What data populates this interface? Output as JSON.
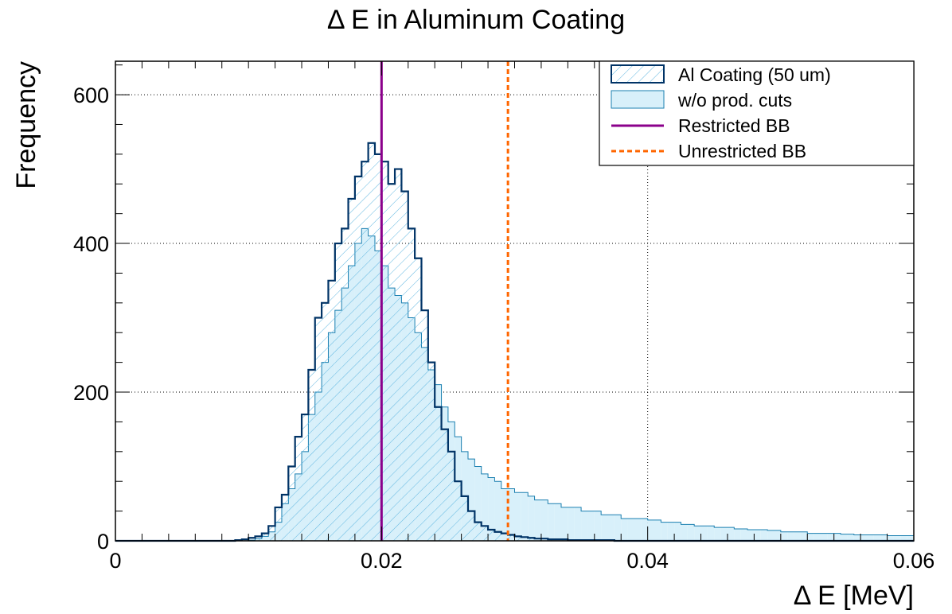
{
  "chart_data": {
    "type": "histogram",
    "title": "Δ E in Aluminum Coating",
    "xlabel": "Δ E [MeV]",
    "ylabel": "Frequency",
    "xlim": [
      0,
      0.06
    ],
    "ylim": [
      0,
      645
    ],
    "grid": true,
    "legend_position": "top-right",
    "x_ticks": [
      {
        "value": 0,
        "label": "0"
      },
      {
        "value": 0.02,
        "label": "0.02"
      },
      {
        "value": 0.04,
        "label": "0.04"
      },
      {
        "value": 0.06,
        "label": "0.06"
      }
    ],
    "y_ticks": [
      {
        "value": 0,
        "label": "0"
      },
      {
        "value": 200,
        "label": "200"
      },
      {
        "value": 400,
        "label": "400"
      },
      {
        "value": 600,
        "label": "600"
      }
    ],
    "bin_width": 0.0005,
    "series": [
      {
        "name": "Al Coating (50 um)",
        "style": "hatched-outline",
        "color": "#003366",
        "hatch_color": "#5fb6e0",
        "values": [
          0,
          0,
          0,
          0,
          0,
          0,
          0,
          0,
          0,
          0,
          0,
          0,
          0,
          0,
          0,
          0,
          0,
          0,
          1,
          2,
          4,
          6,
          10,
          20,
          45,
          62,
          100,
          140,
          170,
          230,
          300,
          320,
          350,
          400,
          420,
          460,
          490,
          510,
          535,
          520,
          510,
          480,
          500,
          470,
          420,
          380,
          310,
          240,
          180,
          150,
          120,
          80,
          60,
          40,
          25,
          20,
          15,
          12,
          10,
          8,
          6,
          5,
          4,
          3,
          3,
          2,
          2,
          2,
          1,
          1,
          1,
          1,
          1,
          1,
          1,
          0,
          0,
          0,
          0,
          0,
          0,
          0,
          0,
          0,
          0,
          0,
          0,
          0,
          0,
          0,
          0,
          0,
          0,
          0,
          0,
          0,
          0,
          0,
          0,
          0,
          0,
          0,
          0,
          0,
          0,
          0,
          0,
          0,
          0,
          0,
          0,
          0,
          0,
          0,
          0,
          0,
          0,
          0,
          0,
          0
        ]
      },
      {
        "name": "w/o prod. cuts",
        "style": "filled",
        "color": "#1a7fb0",
        "fill": "#d8f0fa",
        "values": [
          0,
          0,
          0,
          0,
          0,
          0,
          0,
          0,
          0,
          0,
          0,
          0,
          0,
          0,
          0,
          0,
          0,
          0,
          0,
          0,
          1,
          3,
          6,
          12,
          25,
          50,
          70,
          90,
          120,
          170,
          200,
          240,
          280,
          310,
          340,
          370,
          400,
          420,
          410,
          390,
          370,
          340,
          330,
          320,
          300,
          280,
          260,
          230,
          210,
          180,
          160,
          140,
          120,
          110,
          100,
          90,
          85,
          80,
          70,
          70,
          65,
          65,
          60,
          55,
          55,
          50,
          50,
          45,
          45,
          45,
          40,
          40,
          40,
          35,
          35,
          35,
          30,
          30,
          30,
          30,
          28,
          28,
          25,
          25,
          25,
          22,
          22,
          20,
          20,
          20,
          18,
          18,
          18,
          16,
          16,
          15,
          15,
          15,
          14,
          14,
          12,
          12,
          12,
          12,
          10,
          10,
          10,
          10,
          10,
          9,
          9,
          8,
          8,
          8,
          8,
          8,
          7,
          7,
          7,
          7
        ]
      }
    ],
    "reference_lines": [
      {
        "name": "Restricted BB",
        "x": 0.02,
        "color": "#8b008b",
        "style": "solid"
      },
      {
        "name": "Unrestricted BB",
        "x": 0.0295,
        "color": "#ff6600",
        "style": "dashed"
      }
    ]
  }
}
